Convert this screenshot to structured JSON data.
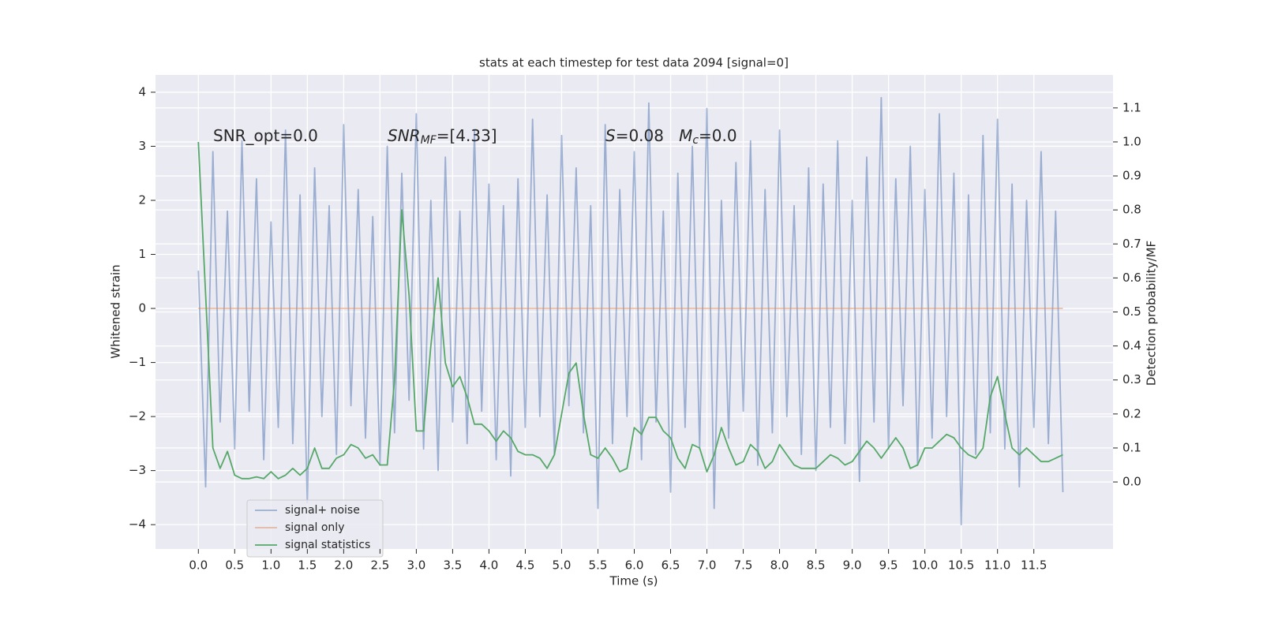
{
  "chart_data": {
    "type": "line",
    "title": "stats at each timestep for test data 2094 [signal=0]",
    "xlabel": "Time (s)",
    "ylabel": "Whitened strain",
    "y2label": "Detection probability/MF",
    "annotations": [
      [
        "SNR_opt=0.0"
      ],
      [
        "SNR",
        "MF",
        "=[4.33]"
      ],
      [
        "S",
        "=0.08   ",
        "M",
        "c",
        "=0.0"
      ]
    ],
    "x": [
      0.0,
      0.1,
      0.2,
      0.3,
      0.4,
      0.5,
      0.6,
      0.7,
      0.8,
      0.9,
      1.0,
      1.1,
      1.2,
      1.3,
      1.4,
      1.5,
      1.6,
      1.7,
      1.8,
      1.9,
      2.0,
      2.1,
      2.2,
      2.3,
      2.4,
      2.5,
      2.6,
      2.7,
      2.8,
      2.9,
      3.0,
      3.1,
      3.2,
      3.3,
      3.4,
      3.5,
      3.6,
      3.7,
      3.8,
      3.9,
      4.0,
      4.1,
      4.2,
      4.3,
      4.4,
      4.5,
      4.6,
      4.7,
      4.8,
      4.9,
      5.0,
      5.1,
      5.2,
      5.3,
      5.4,
      5.5,
      5.6,
      5.7,
      5.8,
      5.9,
      6.0,
      6.1,
      6.2,
      6.3,
      6.4,
      6.5,
      6.6,
      6.7,
      6.8,
      6.9,
      7.0,
      7.1,
      7.2,
      7.3,
      7.4,
      7.5,
      7.6,
      7.7,
      7.8,
      7.9,
      8.0,
      8.1,
      8.2,
      8.3,
      8.4,
      8.5,
      8.6,
      8.7,
      8.8,
      8.9,
      9.0,
      9.1,
      9.2,
      9.3,
      9.4,
      9.5,
      9.6,
      9.7,
      9.8,
      9.9,
      10.0,
      10.1,
      10.2,
      10.3,
      10.4,
      10.5,
      10.6,
      10.7,
      10.8,
      10.9,
      11.0,
      11.1,
      11.2,
      11.3,
      11.4,
      11.5,
      11.6,
      11.7,
      11.8,
      11.9
    ],
    "series": [
      {
        "name": "signal+ noise",
        "color": "#4c72b0",
        "opacity": 0.5,
        "values": [
          0.7,
          -3.3,
          2.9,
          -2.1,
          1.8,
          -2.6,
          3.1,
          -1.9,
          2.4,
          -2.8,
          1.6,
          -2.2,
          3.3,
          -2.5,
          2.1,
          -3.6,
          2.6,
          -2.0,
          1.9,
          -2.7,
          3.4,
          -1.8,
          2.2,
          -2.4,
          1.7,
          -2.9,
          3.0,
          -2.3,
          2.5,
          -1.7,
          3.6,
          -2.6,
          2.0,
          -3.0,
          2.8,
          -2.1,
          1.8,
          -2.5,
          3.3,
          -1.9,
          2.3,
          -2.8,
          1.9,
          -3.1,
          2.4,
          -2.2,
          3.5,
          -2.0,
          2.1,
          -2.7,
          3.2,
          -1.8,
          2.6,
          -2.3,
          1.9,
          -3.7,
          3.4,
          -2.5,
          2.2,
          -2.0,
          2.9,
          -2.8,
          3.8,
          -2.1,
          1.8,
          -3.4,
          2.5,
          -2.2,
          3.0,
          -2.6,
          3.7,
          -3.7,
          2.0,
          -2.4,
          2.7,
          -1.9,
          3.1,
          -2.9,
          2.2,
          -2.3,
          3.3,
          -2.0,
          1.9,
          -2.7,
          2.6,
          -3.0,
          2.3,
          -2.2,
          3.1,
          -2.5,
          2.0,
          -3.2,
          2.8,
          -2.1,
          3.9,
          -2.6,
          2.4,
          -1.8,
          3.0,
          -2.9,
          2.2,
          -2.4,
          3.6,
          -2.0,
          2.5,
          -4.0,
          2.1,
          -2.7,
          3.2,
          -2.3,
          3.5,
          -2.6,
          2.3,
          -3.3,
          2.0,
          -2.2,
          2.9,
          -2.5,
          1.8,
          -3.4
        ]
      },
      {
        "name": "signal only",
        "color": "#dd8452",
        "opacity": 0.5,
        "values": [
          0,
          0,
          0,
          0,
          0,
          0,
          0,
          0,
          0,
          0,
          0,
          0,
          0,
          0,
          0,
          0,
          0,
          0,
          0,
          0,
          0,
          0,
          0,
          0,
          0,
          0,
          0,
          0,
          0,
          0,
          0,
          0,
          0,
          0,
          0,
          0,
          0,
          0,
          0,
          0,
          0,
          0,
          0,
          0,
          0,
          0,
          0,
          0,
          0,
          0,
          0,
          0,
          0,
          0,
          0,
          0,
          0,
          0,
          0,
          0,
          0,
          0,
          0,
          0,
          0,
          0,
          0,
          0,
          0,
          0,
          0,
          0,
          0,
          0,
          0,
          0,
          0,
          0,
          0,
          0,
          0,
          0,
          0,
          0,
          0,
          0,
          0,
          0,
          0,
          0,
          0,
          0,
          0,
          0,
          0,
          0,
          0,
          0,
          0,
          0,
          0,
          0,
          0,
          0,
          0,
          0,
          0,
          0,
          0,
          0,
          0,
          0,
          0,
          0,
          0,
          0,
          0,
          0,
          0,
          0
        ]
      },
      {
        "name": "signal statistics",
        "color": "#55a868",
        "opacity": 1,
        "axis": "y2",
        "values": [
          1.0,
          0.55,
          0.1,
          0.04,
          0.09,
          0.02,
          0.01,
          0.01,
          0.015,
          0.01,
          0.03,
          0.01,
          0.02,
          0.04,
          0.02,
          0.04,
          0.1,
          0.04,
          0.04,
          0.07,
          0.08,
          0.11,
          0.1,
          0.07,
          0.08,
          0.05,
          0.05,
          0.3,
          0.8,
          0.55,
          0.15,
          0.15,
          0.4,
          0.6,
          0.35,
          0.28,
          0.31,
          0.25,
          0.17,
          0.17,
          0.15,
          0.12,
          0.15,
          0.13,
          0.09,
          0.08,
          0.08,
          0.07,
          0.04,
          0.08,
          0.2,
          0.32,
          0.35,
          0.2,
          0.08,
          0.07,
          0.1,
          0.07,
          0.03,
          0.04,
          0.16,
          0.14,
          0.19,
          0.19,
          0.15,
          0.13,
          0.07,
          0.04,
          0.11,
          0.1,
          0.03,
          0.08,
          0.16,
          0.1,
          0.05,
          0.06,
          0.11,
          0.09,
          0.04,
          0.06,
          0.11,
          0.08,
          0.05,
          0.04,
          0.04,
          0.04,
          0.06,
          0.08,
          0.07,
          0.05,
          0.06,
          0.09,
          0.12,
          0.1,
          0.07,
          0.1,
          0.13,
          0.1,
          0.04,
          0.05,
          0.1,
          0.1,
          0.12,
          0.14,
          0.13,
          0.1,
          0.08,
          0.07,
          0.1,
          0.25,
          0.31,
          0.2,
          0.1,
          0.08,
          0.1,
          0.08,
          0.06,
          0.06,
          0.07,
          0.08
        ]
      }
    ],
    "xlim": [
      -0.59,
      12.59
    ],
    "ylim": [
      -4.45,
      4.32
    ],
    "y2lim": [
      -0.197,
      1.197
    ],
    "xticks": [
      {
        "value": 0,
        "label": "0.0"
      },
      0.5,
      {
        "value": 1,
        "label": "1.0"
      },
      1.5,
      {
        "value": 2,
        "label": "2.0"
      },
      2.5,
      {
        "value": 3,
        "label": "3.0"
      },
      3.5,
      {
        "value": 4,
        "label": "4.0"
      },
      4.5,
      {
        "value": 5,
        "label": "5.0"
      },
      5.5,
      {
        "value": 6,
        "label": "6.0"
      },
      6.5,
      {
        "value": 7,
        "label": "7.0"
      },
      7.5,
      {
        "value": 8,
        "label": "8.0"
      },
      8.5,
      {
        "value": 9,
        "label": "9.0"
      },
      9.5,
      {
        "value": 10,
        "label": "10.0"
      },
      10.5,
      {
        "value": 11,
        "label": "11.0"
      },
      11.5
    ],
    "yticks": [
      {
        "value": -4,
        "label": "−4"
      },
      {
        "value": -3,
        "label": "−3"
      },
      {
        "value": -2,
        "label": "−2"
      },
      {
        "value": -1,
        "label": "−1"
      },
      0,
      1,
      2,
      3,
      4
    ],
    "y2ticks": [
      {
        "value": 0,
        "label": "0.0"
      },
      0.1,
      0.2,
      0.3,
      0.4,
      0.5,
      0.6,
      0.7,
      0.8,
      0.9,
      {
        "value": 1,
        "label": "1.0"
      },
      1.1
    ],
    "grid": true,
    "legend": "lower left"
  }
}
